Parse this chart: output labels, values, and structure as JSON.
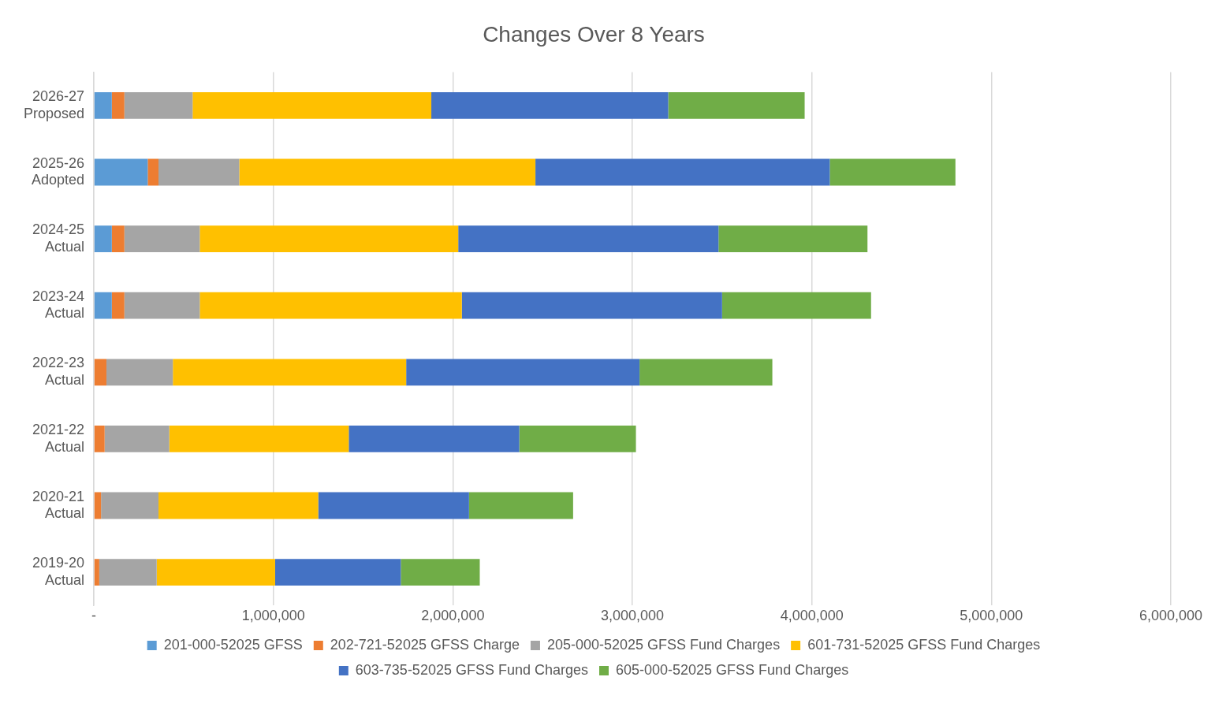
{
  "chart_data": {
    "type": "bar",
    "title": "Changes Over 8 Years",
    "orientation": "horizontal",
    "stacked": true,
    "categories": [
      "2026-27 Proposed",
      "2025-26 Adopted",
      "2024-25 Actual",
      "2023-24 Actual",
      "2022-23 Actual",
      "2021-22 Actual",
      "2020-21 Actual",
      "2019-20 Actual"
    ],
    "series": [
      {
        "name": "201-000-52025 GFSS",
        "color": "#5b9bd5",
        "values": [
          100000,
          300000,
          100000,
          100000,
          0,
          0,
          0,
          0
        ]
      },
      {
        "name": "202-721-52025 GFSS Charge",
        "color": "#ed7d31",
        "values": [
          70000,
          60000,
          70000,
          70000,
          70000,
          60000,
          40000,
          30000
        ]
      },
      {
        "name": "205-000-52025 GFSS Fund Charges",
        "color": "#a5a5a5",
        "values": [
          380000,
          450000,
          420000,
          420000,
          370000,
          360000,
          320000,
          320000
        ]
      },
      {
        "name": "601-731-52025 GFSS Fund Charges",
        "color": "#ffc000",
        "values": [
          1330000,
          1650000,
          1440000,
          1460000,
          1300000,
          1000000,
          890000,
          660000
        ]
      },
      {
        "name": "603-735-52025 GFSS Fund Charges",
        "color": "#4472c4",
        "values": [
          1320000,
          1640000,
          1450000,
          1450000,
          1300000,
          950000,
          840000,
          700000
        ]
      },
      {
        "name": "605-000-52025 GFSS Fund Charges",
        "color": "#70ad47",
        "values": [
          760000,
          700000,
          830000,
          830000,
          740000,
          650000,
          580000,
          440000
        ]
      }
    ],
    "xlim": [
      0,
      6000000
    ],
    "xticks": [
      {
        "value": 0,
        "label": "-"
      },
      {
        "value": 1000000,
        "label": "1,000,000"
      },
      {
        "value": 2000000,
        "label": "2,000,000"
      },
      {
        "value": 3000000,
        "label": "3,000,000"
      },
      {
        "value": 4000000,
        "label": "4,000,000"
      },
      {
        "value": 5000000,
        "label": "5,000,000"
      },
      {
        "value": 6000000,
        "label": "6,000,000"
      }
    ],
    "grid": "x",
    "legend": "bottom"
  }
}
